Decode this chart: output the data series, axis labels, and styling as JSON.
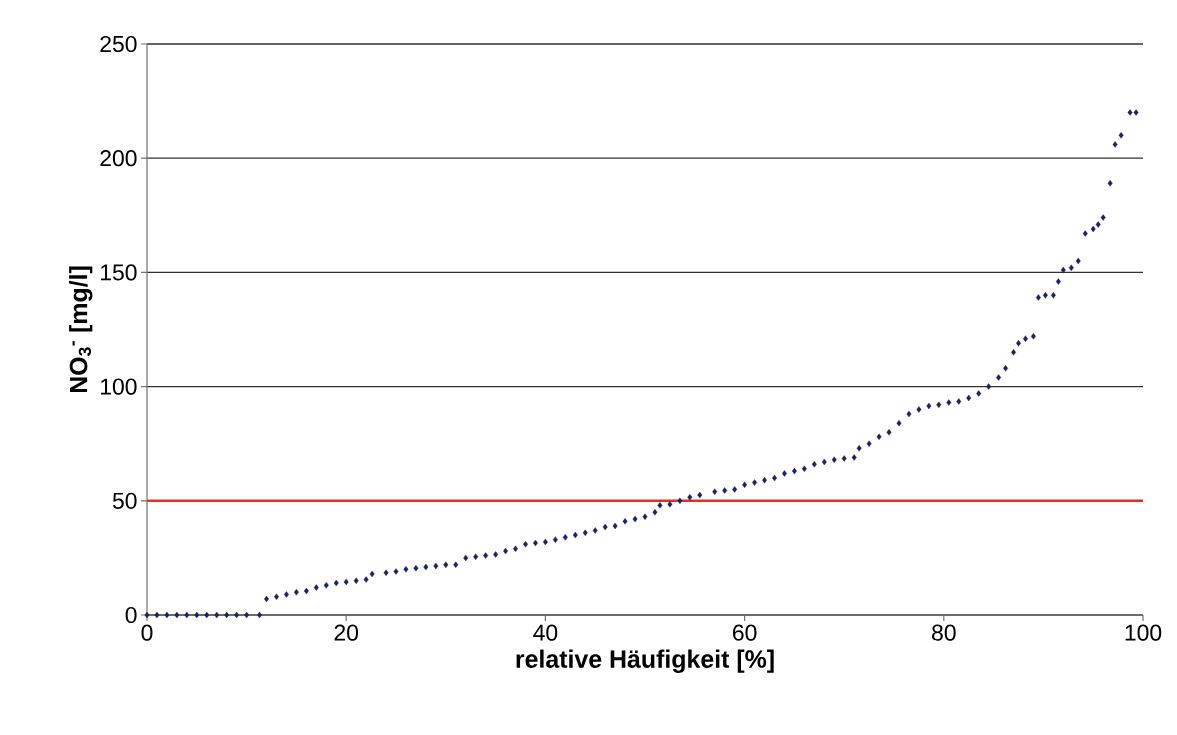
{
  "chart_data": {
    "type": "scatter",
    "xlabel": "relative Häufigkeit [%]",
    "ylabel": "NO$_{3}$$^{-}$ [mg/l]",
    "xlim": [
      0,
      100
    ],
    "ylim": [
      0,
      250
    ],
    "xticks": [
      0,
      20,
      40,
      60,
      80,
      100
    ],
    "yticks": [
      0,
      50,
      100,
      150,
      200,
      250
    ],
    "grid": "y",
    "marker": "diamond",
    "ref_lines": [
      {
        "axis": "y",
        "value": 50,
        "color": "#e0302a"
      }
    ],
    "series": [
      {
        "color": "#1c2163",
        "x": [
          0,
          1,
          2,
          3,
          4,
          5,
          6,
          7,
          8,
          9,
          10,
          11.3,
          12,
          13,
          14,
          15,
          16,
          17,
          18,
          19,
          20,
          21,
          22,
          22.6,
          24,
          25,
          26,
          27,
          28,
          29,
          30,
          31,
          32,
          33,
          34,
          35,
          36,
          37,
          38,
          39,
          40,
          41,
          42,
          43,
          44,
          45,
          46,
          47,
          48,
          49,
          50,
          51,
          51.5,
          52.5,
          53.5,
          54.5,
          55.5,
          57,
          58,
          59,
          60,
          61,
          62,
          63,
          64,
          65,
          66,
          67,
          68,
          69,
          70,
          71,
          71.5,
          72.5,
          73.5,
          74.5,
          75.5,
          76.5,
          77.5,
          78.5,
          79.5,
          80.5,
          81.5,
          82.5,
          83.5,
          84.5,
          85.5,
          86.2,
          87,
          87.5,
          88.2,
          89,
          89.5,
          90.2,
          91,
          91.5,
          92,
          92.8,
          93.5,
          94.2,
          95,
          95.5,
          96,
          96.7,
          97.2,
          97.8,
          98.7,
          99.3
        ],
        "values": [
          0,
          0,
          0,
          0,
          0,
          0,
          0,
          0,
          0,
          0,
          0,
          0,
          7,
          8,
          9,
          10,
          10.5,
          12,
          13,
          14,
          14.5,
          15,
          15.5,
          18,
          18.5,
          19,
          20,
          20.5,
          21,
          21.5,
          22,
          22,
          25,
          25.5,
          26,
          26.5,
          28,
          29,
          31,
          31.5,
          32,
          33,
          34,
          35,
          36,
          37,
          38.5,
          39,
          41,
          42,
          43,
          45,
          48,
          48.5,
          50,
          51.5,
          52.5,
          54,
          54.5,
          55,
          57,
          58,
          59,
          60,
          62,
          63,
          64,
          66,
          67,
          68,
          68.5,
          69,
          73,
          75,
          78,
          80,
          84,
          88,
          90,
          91.5,
          92,
          93,
          93.5,
          95,
          97,
          100,
          104,
          108,
          115,
          119,
          121,
          122,
          139,
          140,
          140,
          146,
          151,
          152,
          155,
          167,
          169,
          171,
          174,
          189,
          206,
          210,
          220,
          220
        ]
      }
    ]
  }
}
